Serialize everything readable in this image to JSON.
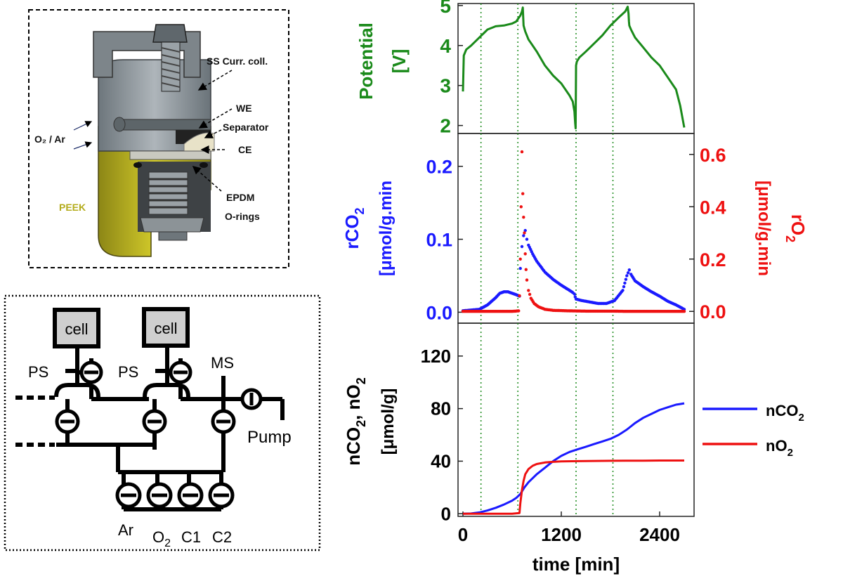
{
  "cell_diagram": {
    "labels": {
      "current_collector": "SS Curr. coll.",
      "we": "WE",
      "separator": "Separator",
      "ce": "CE",
      "gas": "O₂ / Ar",
      "seal_1": "EPDM",
      "seal_2": "O-rings",
      "housing": "PEEK"
    }
  },
  "gas_schematic": {
    "cells": [
      "cell",
      "cell"
    ],
    "ps_labels": [
      "PS",
      "PS"
    ],
    "ms_label": "MS",
    "pump_label": "Pump",
    "gas_inlets": [
      "Ar",
      "O",
      "C1",
      "C2"
    ],
    "o2_subscript": "2"
  },
  "colors": {
    "potential": "#1a8a1a",
    "co2": "#1a1aff",
    "o2": "#ee1111",
    "frame": "#000000",
    "peek": "#c8c020",
    "steel": "#8e969c"
  },
  "chart_data": [
    {
      "type": "line",
      "panel": "potential",
      "ylabel_line1": "Potential",
      "ylabel_line2": "[V]",
      "ylim": [
        1.8,
        5.05
      ],
      "yticks": [
        "2",
        "3",
        "4",
        "5"
      ],
      "series": [
        {
          "name": "Potential",
          "x": [
            0,
            10,
            40,
            100,
            200,
            300,
            400,
            500,
            600,
            650,
            700,
            720,
            730,
            735,
            740,
            760,
            800,
            900,
            1000,
            1100,
            1200,
            1300,
            1340,
            1360,
            1370,
            1375,
            1380,
            1390,
            1420,
            1500,
            1600,
            1700,
            1800,
            1900,
            1980,
            2010,
            2020,
            2025,
            2030,
            2050,
            2100,
            2200,
            2300,
            2400,
            2500,
            2600,
            2650,
            2700
          ],
          "y": [
            2.85,
            3.75,
            3.9,
            4.0,
            4.2,
            4.4,
            4.48,
            4.5,
            4.55,
            4.6,
            4.75,
            4.85,
            4.95,
            4.7,
            4.5,
            4.35,
            4.15,
            3.85,
            3.5,
            3.25,
            3.05,
            2.75,
            2.6,
            2.35,
            2.05,
            1.93,
            3.5,
            3.6,
            3.7,
            3.85,
            4.05,
            4.25,
            4.5,
            4.7,
            4.85,
            4.97,
            4.8,
            4.6,
            4.5,
            4.4,
            4.2,
            3.95,
            3.7,
            3.5,
            3.2,
            2.9,
            2.5,
            1.95
          ]
        }
      ],
      "vlines": [
        220,
        670,
        1380,
        1830
      ]
    },
    {
      "type": "scatter",
      "panel": "rates",
      "ylabel_left_main": "rCO",
      "ylabel_left_sub": "2",
      "ylabel_left_unit": "[μmol/g.min",
      "ylim_left": [
        -0.015,
        0.245
      ],
      "yticks_left": [
        "0.0",
        "0.1",
        "0.2"
      ],
      "ylabel_right_main": "rO",
      "ylabel_right_sub": "2",
      "ylabel_right_unit": "[μmol/g.min",
      "ylim_right": [
        -0.045,
        0.68
      ],
      "yticks_right": [
        "0.0",
        "0.2",
        "0.4",
        "0.6"
      ],
      "series": [
        {
          "name": "rCO2",
          "axis": "left",
          "x": [
            0,
            100,
            200,
            250,
            300,
            350,
            400,
            450,
            500,
            550,
            600,
            650,
            690,
            700,
            720,
            740,
            760,
            780,
            800,
            850,
            900,
            1000,
            1100,
            1200,
            1300,
            1340,
            1360,
            1370,
            1380,
            1450,
            1550,
            1650,
            1750,
            1850,
            1950,
            2000,
            2030,
            2050,
            2100,
            2200,
            2300,
            2400,
            2500,
            2600,
            2700
          ],
          "y": [
            0.002,
            0.003,
            0.004,
            0.007,
            0.01,
            0.015,
            0.02,
            0.026,
            0.028,
            0.028,
            0.026,
            0.024,
            0.022,
            0.06,
            0.09,
            0.105,
            0.112,
            0.1,
            0.092,
            0.08,
            0.07,
            0.055,
            0.045,
            0.037,
            0.03,
            0.027,
            0.025,
            0.021,
            0.018,
            0.016,
            0.014,
            0.012,
            0.012,
            0.016,
            0.03,
            0.05,
            0.058,
            0.052,
            0.043,
            0.035,
            0.028,
            0.022,
            0.015,
            0.01,
            0.004
          ]
        },
        {
          "name": "rO2",
          "axis": "right",
          "x": [
            0,
            200,
            400,
            600,
            680,
            690,
            700,
            710,
            720,
            730,
            740,
            750,
            760,
            770,
            780,
            800,
            830,
            870,
            920,
            1000,
            1100,
            1300,
            1500,
            1800,
            2000,
            2200,
            2400,
            2600,
            2700
          ],
          "y": [
            0.0,
            0.0,
            0.0,
            0.0,
            0.002,
            0.06,
            0.2,
            0.4,
            0.61,
            0.45,
            0.36,
            0.3,
            0.22,
            0.16,
            0.12,
            0.08,
            0.05,
            0.03,
            0.018,
            0.008,
            0.004,
            0.002,
            0.001,
            0.001,
            0.0,
            0.0,
            0.0,
            0.0,
            0.0
          ]
        }
      ]
    },
    {
      "type": "line",
      "panel": "cumulative",
      "xlabel": "time [min]",
      "ylabel_main": "nCO",
      "ylabel_sub1": "2",
      "ylabel_mid": ", nO",
      "ylabel_sub2": "2",
      "ylabel_unit": "[μmol/g]",
      "xlim": [
        -60,
        2820
      ],
      "ylim": [
        -2,
        145
      ],
      "xticks": [
        "0",
        "1200",
        "2400"
      ],
      "yticks": [
        "0",
        "40",
        "80",
        "120"
      ],
      "legend": [
        "nCO",
        "nO"
      ],
      "legend_sub": "2",
      "series": [
        {
          "name": "nCO2",
          "x": [
            0,
            100,
            200,
            300,
            400,
            500,
            600,
            650,
            700,
            750,
            800,
            850,
            900,
            1000,
            1100,
            1200,
            1300,
            1400,
            1500,
            1600,
            1700,
            1800,
            1900,
            2000,
            2100,
            2200,
            2300,
            2400,
            2500,
            2600,
            2650,
            2700
          ],
          "y": [
            0,
            0.2,
            1,
            2.5,
            4.5,
            7,
            10,
            12,
            15,
            20,
            24,
            27,
            30,
            35,
            40,
            44,
            47,
            49,
            51,
            53,
            55,
            57,
            60,
            64,
            69,
            73,
            76,
            79,
            81,
            83,
            83.5,
            84
          ]
        },
        {
          "name": "nO2",
          "x": [
            0,
            200,
            400,
            600,
            690,
            700,
            720,
            740,
            760,
            800,
            850,
            900,
            1000,
            1100,
            1200,
            1400,
            1600,
            1800,
            2000,
            2200,
            2400,
            2600,
            2700
          ],
          "y": [
            0,
            0,
            0,
            0,
            0.5,
            8,
            18,
            25,
            30,
            34,
            36.5,
            37.8,
            39,
            39.5,
            39.8,
            40,
            40.2,
            40.3,
            40.4,
            40.4,
            40.5,
            40.5,
            40.5
          ]
        }
      ]
    }
  ]
}
